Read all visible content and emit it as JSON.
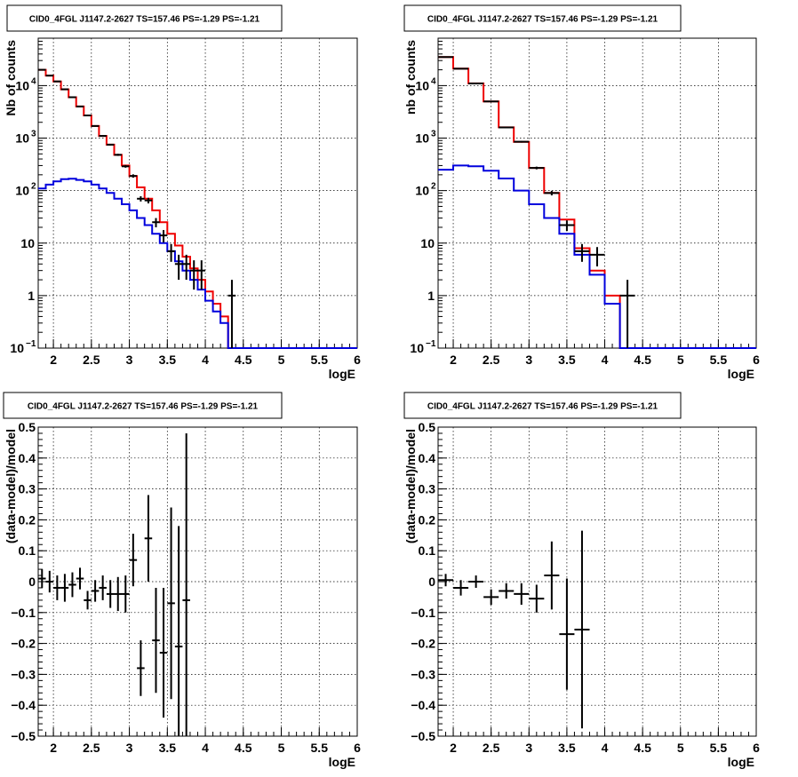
{
  "chart_data": [
    {
      "type": "line",
      "title": "CID0_4FGL J1147.2-2627 TS=157.46 PS=-1.29 PS=-1.21",
      "xlabel": "logE",
      "ylabel": "Nb of counts",
      "yscale": "log",
      "xlim": [
        1.8,
        6.0
      ],
      "ylim": [
        0.1,
        80000
      ],
      "grid": true,
      "xticks": [
        "2",
        "2.5",
        "3",
        "3.5",
        "4",
        "4.5",
        "5",
        "5.5",
        "6"
      ],
      "yticks": [
        {
          "value": 0.1,
          "base": "10",
          "exp": "−1"
        },
        {
          "value": 1,
          "base": "1",
          "exp": ""
        },
        {
          "value": 10,
          "base": "10",
          "exp": ""
        },
        {
          "value": 100,
          "base": "10",
          "exp": "2"
        },
        {
          "value": 1000,
          "base": "10",
          "exp": "3"
        },
        {
          "value": 10000,
          "base": "10",
          "exp": "4"
        }
      ],
      "bin_edges": [
        1.8,
        1.9,
        2.0,
        2.1,
        2.2,
        2.3,
        2.4,
        2.5,
        2.6,
        2.7,
        2.8,
        2.9,
        3.0,
        3.1,
        3.2,
        3.3,
        3.4,
        3.5,
        3.6,
        3.7,
        3.8,
        3.9,
        4.0,
        4.1,
        4.2,
        4.3,
        4.4,
        4.5,
        4.6,
        4.7,
        4.8,
        4.9,
        5.0,
        5.1,
        5.2,
        5.3,
        5.4,
        5.5,
        5.6,
        5.7,
        5.8,
        5.9,
        6.0
      ],
      "series": [
        {
          "color": "#ee0000",
          "role": "total_model",
          "values": [
            20000,
            15500,
            12000,
            8500,
            6000,
            4000,
            2700,
            1700,
            1100,
            750,
            480,
            300,
            190,
            115,
            70,
            42,
            25,
            15,
            9,
            5.5,
            3.3,
            2,
            1.2,
            0.7,
            0.4,
            0.1,
            0.1,
            0.1,
            0.1,
            0.1,
            0.1,
            0.1,
            0.1,
            0.1,
            0.1,
            0.1,
            0.1,
            0.1,
            0.1,
            0.1,
            0.1,
            0.1
          ]
        },
        {
          "color": "#0000dd",
          "role": "source_model",
          "values": [
            110,
            130,
            150,
            165,
            168,
            160,
            150,
            130,
            110,
            90,
            70,
            55,
            42,
            30,
            22,
            15,
            10,
            7,
            4.5,
            3,
            2,
            1.3,
            0.8,
            0.5,
            0.3,
            0.1,
            0.1,
            0.1,
            0.1,
            0.1,
            0.1,
            0.1,
            0.1,
            0.1,
            0.1,
            0.1,
            0.1,
            0.1,
            0.1,
            0.1,
            0.1,
            0.1
          ]
        }
      ],
      "points": [
        {
          "x": 1.85,
          "y": 20000,
          "err": 140
        },
        {
          "x": 1.95,
          "y": 15500,
          "err": 125
        },
        {
          "x": 2.05,
          "y": 12000,
          "err": 110
        },
        {
          "x": 2.15,
          "y": 8500,
          "err": 92
        },
        {
          "x": 2.25,
          "y": 6000,
          "err": 78
        },
        {
          "x": 2.35,
          "y": 4000,
          "err": 63
        },
        {
          "x": 2.45,
          "y": 2700,
          "err": 52
        },
        {
          "x": 2.55,
          "y": 1700,
          "err": 41
        },
        {
          "x": 2.65,
          "y": 1100,
          "err": 33
        },
        {
          "x": 2.75,
          "y": 750,
          "err": 27
        },
        {
          "x": 2.85,
          "y": 480,
          "err": 22
        },
        {
          "x": 2.95,
          "y": 290,
          "err": 17
        },
        {
          "x": 3.05,
          "y": 190,
          "err": 14
        },
        {
          "x": 3.15,
          "y": 70,
          "err": 8
        },
        {
          "x": 3.25,
          "y": 65,
          "err": 8
        },
        {
          "x": 3.35,
          "y": 25,
          "err": 5
        },
        {
          "x": 3.45,
          "y": 14,
          "err": 3.7
        },
        {
          "x": 3.55,
          "y": 7,
          "err": 2.6
        },
        {
          "x": 3.65,
          "y": 4,
          "err": 2
        },
        {
          "x": 3.75,
          "y": 4,
          "err": 2
        },
        {
          "x": 3.85,
          "y": 3,
          "err": 1.7
        },
        {
          "x": 3.95,
          "y": 3,
          "err": 1.7
        },
        {
          "x": 4.35,
          "y": 1,
          "err": 1
        }
      ]
    },
    {
      "type": "line",
      "title": "CID0_4FGL J1147.2-2627 TS=157.46 PS=-1.29 PS=-1.21",
      "xlabel": "logE",
      "ylabel": "nb of counts",
      "yscale": "log",
      "xlim": [
        1.8,
        6.0
      ],
      "ylim": [
        0.1,
        80000
      ],
      "grid": true,
      "xticks": [
        "2",
        "2.5",
        "3",
        "3.5",
        "4",
        "4.5",
        "5",
        "5.5",
        "6"
      ],
      "yticks": [
        {
          "value": 0.1,
          "base": "10",
          "exp": "−1"
        },
        {
          "value": 1,
          "base": "1",
          "exp": ""
        },
        {
          "value": 10,
          "base": "10",
          "exp": ""
        },
        {
          "value": 100,
          "base": "10",
          "exp": "2"
        },
        {
          "value": 1000,
          "base": "10",
          "exp": "3"
        },
        {
          "value": 10000,
          "base": "10",
          "exp": "4"
        }
      ],
      "bin_edges": [
        1.8,
        2.0,
        2.2,
        2.4,
        2.6,
        2.8,
        3.0,
        3.2,
        3.4,
        3.6,
        3.8,
        4.0,
        4.2,
        4.4,
        4.6,
        4.8,
        5.0,
        5.2,
        5.4,
        5.6,
        5.8,
        6.0
      ],
      "series": [
        {
          "color": "#ee0000",
          "role": "total_model",
          "values": [
            35000,
            21000,
            11000,
            5000,
            1600,
            850,
            270,
            90,
            28,
            8,
            3,
            1,
            0.1,
            0.1,
            0.1,
            0.1,
            0.1,
            0.1,
            0.1,
            0.1,
            0.1
          ]
        },
        {
          "color": "#0000dd",
          "role": "source_model",
          "values": [
            250,
            300,
            290,
            240,
            170,
            100,
            55,
            30,
            15,
            6,
            2.5,
            0.7,
            0.1,
            0.1,
            0.1,
            0.1,
            0.1,
            0.1,
            0.1,
            0.1,
            0.1
          ]
        }
      ],
      "points": [
        {
          "x": 1.9,
          "y": 35000,
          "err": 190
        },
        {
          "x": 2.1,
          "y": 21000,
          "err": 145
        },
        {
          "x": 2.3,
          "y": 11000,
          "err": 105
        },
        {
          "x": 2.5,
          "y": 5000,
          "err": 71
        },
        {
          "x": 2.7,
          "y": 1600,
          "err": 40
        },
        {
          "x": 2.9,
          "y": 850,
          "err": 29
        },
        {
          "x": 3.1,
          "y": 270,
          "err": 16
        },
        {
          "x": 3.3,
          "y": 90,
          "err": 9
        },
        {
          "x": 3.5,
          "y": 22,
          "err": 5
        },
        {
          "x": 3.7,
          "y": 7,
          "err": 2.6
        },
        {
          "x": 3.9,
          "y": 6,
          "err": 2.4
        },
        {
          "x": 4.3,
          "y": 1,
          "err": 1
        }
      ]
    },
    {
      "type": "scatter",
      "title": "CID0_4FGL J1147.2-2627 TS=157.46 PS=-1.29 PS=-1.21",
      "xlabel": "logE",
      "ylabel": "(data-model)/model",
      "yscale": "linear",
      "xlim": [
        1.8,
        6.0
      ],
      "ylim": [
        -0.5,
        0.5
      ],
      "grid": true,
      "xticks": [
        "2",
        "2.5",
        "3",
        "3.5",
        "4",
        "4.5",
        "5",
        "5.5",
        "6"
      ],
      "yticks": [
        "0.5",
        "0.4",
        "0.3",
        "0.2",
        "0.1",
        "0",
        "−0.1",
        "−0.2",
        "−0.3",
        "−0.4",
        "−0.5"
      ],
      "xhalf": 0.05,
      "points": [
        {
          "x": 1.85,
          "y": 0.01,
          "err": 0.03
        },
        {
          "x": 1.95,
          "y": 0.0,
          "err": 0.035
        },
        {
          "x": 2.05,
          "y": -0.02,
          "err": 0.04
        },
        {
          "x": 2.15,
          "y": -0.02,
          "err": 0.045
        },
        {
          "x": 2.25,
          "y": -0.01,
          "err": 0.04
        },
        {
          "x": 2.35,
          "y": 0.01,
          "err": 0.035
        },
        {
          "x": 2.45,
          "y": -0.06,
          "err": 0.03
        },
        {
          "x": 2.55,
          "y": -0.03,
          "err": 0.035
        },
        {
          "x": 2.65,
          "y": -0.02,
          "err": 0.04
        },
        {
          "x": 2.75,
          "y": -0.04,
          "err": 0.045
        },
        {
          "x": 2.85,
          "y": -0.04,
          "err": 0.055
        },
        {
          "x": 2.95,
          "y": -0.04,
          "err": 0.06
        },
        {
          "x": 3.05,
          "y": 0.07,
          "err": 0.085
        },
        {
          "x": 3.15,
          "y": -0.28,
          "err": 0.09
        },
        {
          "x": 3.25,
          "y": 0.14,
          "err": 0.14
        },
        {
          "x": 3.35,
          "y": -0.19,
          "err": 0.17
        },
        {
          "x": 3.45,
          "y": -0.23,
          "err": 0.21
        },
        {
          "x": 3.55,
          "y": -0.07,
          "err": 0.31
        },
        {
          "x": 3.65,
          "y": -0.21,
          "err": 0.39
        },
        {
          "x": 3.75,
          "y": -0.06,
          "err": 0.54
        }
      ]
    },
    {
      "type": "scatter",
      "title": "CID0_4FGL J1147.2-2627 TS=157.46 PS=-1.29 PS=-1.21",
      "xlabel": "logE",
      "ylabel": "(data-model)/model",
      "yscale": "linear",
      "xlim": [
        1.8,
        6.0
      ],
      "ylim": [
        -0.5,
        0.5
      ],
      "grid": true,
      "xticks": [
        "2",
        "2.5",
        "3",
        "3.5",
        "4",
        "4.5",
        "5",
        "5.5",
        "6"
      ],
      "yticks": [
        "0.5",
        "0.4",
        "0.3",
        "0.2",
        "0.1",
        "0",
        "−0.1",
        "−0.2",
        "−0.3",
        "−0.4",
        "−0.5"
      ],
      "xhalf": 0.1,
      "points": [
        {
          "x": 1.9,
          "y": 0.005,
          "err": 0.02
        },
        {
          "x": 2.1,
          "y": -0.02,
          "err": 0.025
        },
        {
          "x": 2.3,
          "y": 0.0,
          "err": 0.02
        },
        {
          "x": 2.5,
          "y": -0.05,
          "err": 0.025
        },
        {
          "x": 2.7,
          "y": -0.03,
          "err": 0.025
        },
        {
          "x": 2.9,
          "y": -0.04,
          "err": 0.035
        },
        {
          "x": 3.1,
          "y": -0.055,
          "err": 0.045
        },
        {
          "x": 3.3,
          "y": 0.02,
          "err": 0.11
        },
        {
          "x": 3.5,
          "y": -0.17,
          "err": 0.18
        },
        {
          "x": 3.7,
          "y": -0.155,
          "err": 0.32
        }
      ]
    }
  ]
}
